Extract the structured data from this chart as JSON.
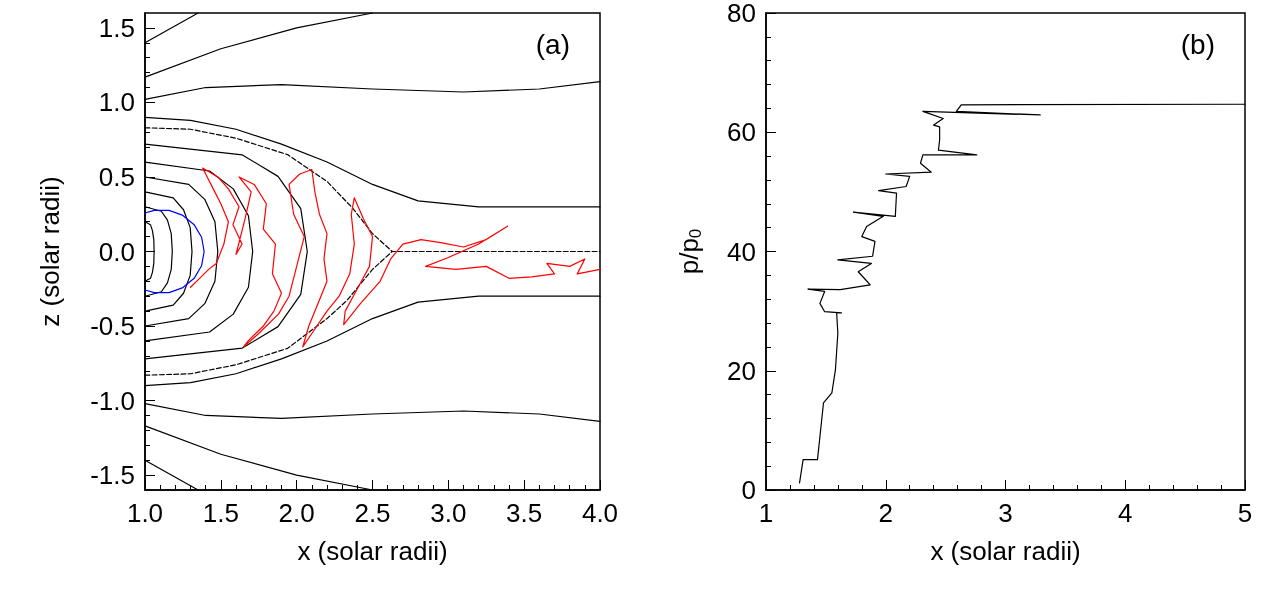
{
  "chart_data": [
    {
      "type": "line",
      "xlabel": "x (solar radii)",
      "ylabel": "z (solar radii)",
      "annotations": [
        "(a)"
      ],
      "xlim": [
        1.0,
        4.0
      ],
      "ylim": [
        -1.6,
        1.6
      ],
      "xticks": [
        {
          "value": 1,
          "label": "1.0"
        },
        1.5,
        {
          "value": 2,
          "label": "2.0"
        },
        2.5,
        {
          "value": 3,
          "label": "3.0"
        },
        3.5,
        {
          "value": 4,
          "label": "4.0"
        }
      ],
      "yticks": [
        -1.5,
        {
          "value": -1,
          "label": "-1.0"
        },
        -0.5,
        {
          "value": 0,
          "label": "0.0"
        },
        0.5,
        {
          "value": 1,
          "label": "1.0"
        },
        1.5
      ],
      "grid": false,
      "marker": "none",
      "series": [
        {
          "color": "#000000",
          "line_style": "solid",
          "x": [
            1,
            1.036,
            1.049,
            1.058,
            1.06,
            1.058,
            1.049,
            1.036,
            1
          ],
          "values": [
            0.2,
            0.18,
            0.14,
            0.08,
            0,
            -0.08,
            -0.14,
            -0.18,
            -0.2
          ]
        },
        {
          "color": "#000000",
          "line_style": "solid",
          "x": [
            1,
            1.108,
            1.148,
            1.173,
            1.18,
            1.173,
            1.148,
            1.108,
            1
          ],
          "values": [
            0.3,
            0.27,
            0.21,
            0.12,
            0,
            -0.12,
            -0.21,
            -0.27,
            -0.3
          ]
        },
        {
          "color": "#000000",
          "line_style": "solid",
          "x": [
            1,
            1.186,
            1.254,
            1.298,
            1.31,
            1.298,
            1.254,
            1.186,
            1
          ],
          "values": [
            0.4,
            0.36,
            0.28,
            0.16,
            0,
            -0.16,
            -0.28,
            -0.36,
            -0.4
          ]
        },
        {
          "color": "#000000",
          "line_style": "solid",
          "x": [
            1,
            1.288,
            1.394,
            1.461,
            1.48,
            1.461,
            1.394,
            1.288,
            1
          ],
          "values": [
            0.5,
            0.45,
            0.35,
            0.2,
            0,
            -0.2,
            -0.35,
            -0.45,
            -0.5
          ]
        },
        {
          "color": "#000000",
          "line_style": "solid",
          "x": [
            1,
            1.426,
            1.582,
            1.682,
            1.71,
            1.682,
            1.582,
            1.426,
            1
          ],
          "values": [
            0.6,
            0.54,
            0.42,
            0.24,
            0,
            -0.24,
            -0.42,
            -0.54,
            -0.6
          ]
        },
        {
          "color": "#000000",
          "line_style": "solid",
          "x": [
            1,
            1.642,
            1.877,
            2.027,
            2.07,
            2.027,
            1.877,
            1.642,
            1
          ],
          "values": [
            0.72,
            0.648,
            0.504,
            0.288,
            0,
            -0.288,
            -0.504,
            -0.648,
            -0.72
          ]
        },
        {
          "color": "#000000",
          "line_style": "dashed",
          "x": [
            1,
            1.3,
            1.6,
            1.94,
            2.2,
            2.37,
            2.5,
            2.63,
            4
          ],
          "values": [
            0.83,
            0.82,
            0.76,
            0.65,
            0.47,
            0.29,
            0.12,
            0,
            0
          ]
        },
        {
          "color": "#000000",
          "line_style": "dashed",
          "x": [
            1,
            1.3,
            1.6,
            1.94,
            2.2,
            2.33,
            2.5,
            2.63
          ],
          "values": [
            -0.83,
            -0.82,
            -0.76,
            -0.65,
            -0.45,
            -0.33,
            -0.12,
            0
          ]
        },
        {
          "color": "#000000",
          "line_style": "solid",
          "x": [
            1,
            1.3,
            1.6,
            1.9,
            2.2,
            2.5,
            2.8,
            3.2,
            4
          ],
          "values": [
            0.9,
            0.88,
            0.82,
            0.72,
            0.6,
            0.45,
            0.34,
            0.3,
            0.3
          ]
        },
        {
          "color": "#000000",
          "line_style": "solid",
          "x": [
            1,
            1.3,
            1.6,
            1.9,
            2.2,
            2.5,
            2.8,
            3.2,
            4
          ],
          "values": [
            -0.9,
            -0.88,
            -0.82,
            -0.72,
            -0.6,
            -0.45,
            -0.34,
            -0.3,
            -0.3
          ]
        },
        {
          "color": "#000000",
          "line_style": "solid",
          "x": [
            1,
            1.4,
            1.9,
            2.5,
            3.1,
            3.6,
            4
          ],
          "values": [
            1.02,
            1.1,
            1.12,
            1.09,
            1.07,
            1.09,
            1.14
          ]
        },
        {
          "color": "#000000",
          "line_style": "solid",
          "x": [
            1,
            1.4,
            1.9,
            2.5,
            3.1,
            3.6,
            4
          ],
          "values": [
            -1.02,
            -1.1,
            -1.12,
            -1.09,
            -1.07,
            -1.09,
            -1.14
          ]
        },
        {
          "color": "#000000",
          "line_style": "solid",
          "x": [
            1,
            1.5,
            2,
            2.5
          ],
          "values": [
            1.17,
            1.36,
            1.5,
            1.6
          ]
        },
        {
          "color": "#000000",
          "line_style": "solid",
          "x": [
            1,
            1.5,
            2,
            2.5
          ],
          "values": [
            -1.17,
            -1.36,
            -1.5,
            -1.6
          ]
        },
        {
          "color": "#000000",
          "line_style": "solid",
          "x": [
            1,
            1.35
          ],
          "values": [
            1.4,
            1.6
          ]
        },
        {
          "color": "#000000",
          "line_style": "solid",
          "x": [
            1,
            1.35
          ],
          "values": [
            -1.4,
            -1.6
          ]
        },
        {
          "color": "#ff0000",
          "line_style": "solid",
          "x": [
            1.3,
            1.36,
            1.42,
            1.47,
            1.52,
            1.55,
            1.5,
            1.45,
            1.38,
            1.48,
            1.55,
            1.62,
            1.58,
            1.64,
            1.6,
            1.66,
            1.7,
            1.62,
            1.72,
            1.8,
            1.78,
            1.86,
            1.84,
            1.9,
            1.85,
            1.78,
            1.68,
            1.65,
            1.75,
            1.88,
            1.95,
            2.0,
            2.05,
            1.98,
            1.95,
            2.02,
            2.1,
            2.12,
            2.15,
            2.2,
            2.18,
            2.2,
            2.14,
            2.08,
            2.04,
            2.12,
            2.2,
            2.28,
            2.35,
            2.38,
            2.36,
            2.38,
            2.44,
            2.5,
            2.48,
            2.4,
            2.32,
            2.31,
            2.42,
            2.55,
            2.62,
            2.7,
            2.82,
            2.95,
            3.1,
            3.25,
            3.39,
            3.2,
            3.0,
            2.85,
            3.05,
            3.25,
            3.4,
            3.55,
            3.7,
            3.65,
            3.8,
            3.9,
            3.85,
            4.0
          ],
          "values": [
            -0.24,
            -0.18,
            -0.12,
            -0.08,
            0.05,
            0.2,
            0.32,
            0.42,
            0.56,
            0.5,
            0.42,
            0.3,
            0.18,
            0.05,
            -0.02,
            0.22,
            0.4,
            0.5,
            0.45,
            0.32,
            0.15,
            0.05,
            -0.15,
            -0.28,
            -0.4,
            -0.5,
            -0.6,
            -0.64,
            -0.55,
            -0.42,
            -0.3,
            -0.1,
            0.1,
            0.25,
            0.45,
            0.52,
            0.55,
            0.4,
            0.25,
            0.12,
            -0.05,
            -0.2,
            -0.35,
            -0.5,
            -0.64,
            -0.52,
            -0.4,
            -0.3,
            -0.15,
            0.05,
            0.25,
            0.36,
            0.22,
            0.1,
            -0.1,
            -0.25,
            -0.4,
            -0.49,
            -0.35,
            -0.2,
            -0.05,
            0.05,
            0.08,
            0.06,
            0.03,
            0.08,
            0.17,
            0.05,
            -0.04,
            -0.1,
            -0.12,
            -0.1,
            -0.18,
            -0.17,
            -0.15,
            -0.08,
            -0.1,
            -0.05,
            -0.15,
            -0.12
          ]
        },
        {
          "color": "#0000ff",
          "line_style": "solid",
          "x": [
            1.0,
            1.061,
            1.159,
            1.25,
            1.324,
            1.373,
            1.39,
            1.373,
            1.324,
            1.25,
            1.159,
            1.061,
            1.0
          ],
          "values": [
            -0.258,
            -0.276,
            -0.276,
            -0.242,
            -0.18,
            -0.096,
            0,
            0.096,
            0.18,
            0.242,
            0.276,
            0.276,
            0.258
          ]
        }
      ]
    },
    {
      "type": "line",
      "xlabel": "x (solar radii)",
      "ylabel": "p/p$_{0}$",
      "annotations": [
        "(b)"
      ],
      "xlim": [
        1,
        5
      ],
      "ylim": [
        0,
        80
      ],
      "xticks": [
        1,
        2,
        3,
        4,
        5
      ],
      "yticks": [
        0,
        20,
        40,
        60,
        80
      ],
      "grid": false,
      "marker": "none",
      "series": [
        {
          "color": "#000000",
          "line_style": "solid",
          "x": [
            1.28,
            1.31,
            1.43,
            1.48,
            1.55,
            1.58,
            1.6,
            1.59,
            1.63,
            1.49,
            1.45,
            1.49,
            1.35,
            1.62,
            1.87,
            1.83,
            1.77,
            1.88,
            1.6,
            1.89,
            1.91,
            1.8,
            1.84,
            1.98,
            1.73,
            2.08,
            2.09,
            1.94,
            2.17,
            2.2,
            2.0,
            2.38,
            2.29,
            2.31,
            2.76,
            2.44,
            2.45,
            2.45,
            2.4,
            2.48,
            2.31,
            3.29,
            2.59,
            2.63,
            5.0
          ],
          "values": [
            1.2,
            5.1,
            5.1,
            14.6,
            16.3,
            20.2,
            26.3,
            29.7,
            29.7,
            29.9,
            31.3,
            33.3,
            33.7,
            33.6,
            34.4,
            35.3,
            36.6,
            38.0,
            38.6,
            39.2,
            41.7,
            42.5,
            44.2,
            45.9,
            46.6,
            45.9,
            49.8,
            50.2,
            50.9,
            52.6,
            53.0,
            53.3,
            54.8,
            56.2,
            56.2,
            57.0,
            58.7,
            60.9,
            61.2,
            62.3,
            63.5,
            62.9,
            63.5,
            64.6,
            64.7
          ]
        }
      ]
    }
  ]
}
